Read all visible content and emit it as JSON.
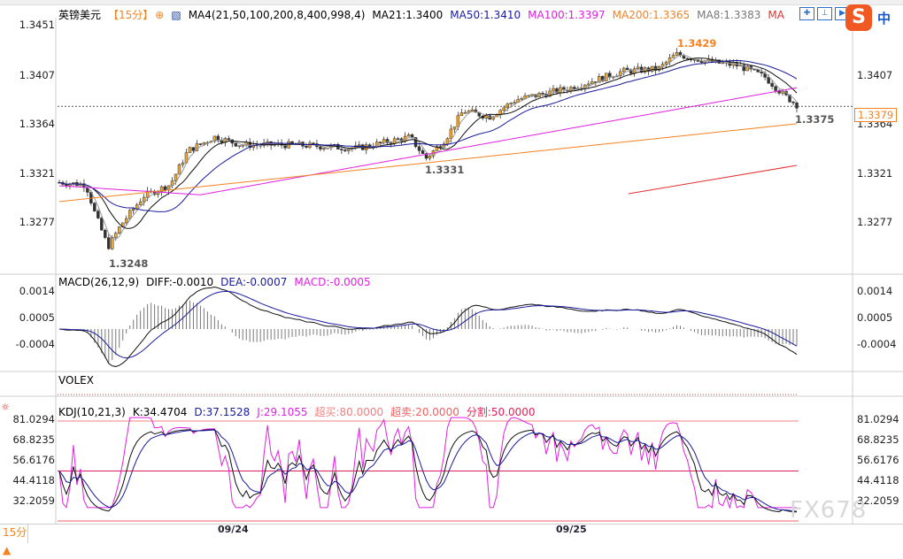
{
  "header": {
    "symbol": "英镑美元",
    "timeframe": "【15分】",
    "indicator": "MA4(21,50,100,200,8,400,998,4)",
    "ma21": "MA21:1.3400",
    "ma50": "MA50:1.3410",
    "ma100": "MA100:1.3397",
    "ma200": "MA200:1.3365",
    "ma8": "MA8:1.3383",
    "ma_more": "MA"
  },
  "toolbar": {
    "icons": [
      "crosshair-icon",
      "range-icon",
      "play-icon"
    ],
    "ime": "中",
    "ime_logo": "S"
  },
  "price_axis": {
    "left": [
      "1.3451",
      "1.3407",
      "1.3364",
      "1.3321",
      "1.3277"
    ],
    "right": [
      "1.3407",
      "1.3364",
      "1.3321",
      "1.3277"
    ],
    "current": "1.3379"
  },
  "annotations": {
    "high": "1.3429",
    "low": "1.3248",
    "mid_low": "1.3331",
    "last_low": "1.3375"
  },
  "macd": {
    "title": "MACD(26,12,9)",
    "diff": "DIFF:-0.0010",
    "dea": "DEA:-0.0007",
    "macd": "MACD:-0.0005",
    "axis": [
      "0.0014",
      "0.0005",
      "-0.0004"
    ]
  },
  "volex": {
    "title": "VOLEX"
  },
  "kdj": {
    "title": "KDJ(10,21,3)",
    "k": "K:34.4704",
    "d": "D:37.1528",
    "j": "J:29.1055",
    "overbought": "超买:80.0000",
    "oversold": "超卖:20.0000",
    "split": "分割:50.0000",
    "axis": [
      "81.0294",
      "68.8235",
      "56.6176",
      "44.4118",
      "32.2059"
    ]
  },
  "footer": {
    "timeframe": "15分▲",
    "dates": [
      "09/24",
      "09/25"
    ]
  },
  "watermark": "FX678",
  "chart_data": {
    "type": "candlestick",
    "symbol": "GBP/USD",
    "price_path": [
      [
        0,
        1.3312
      ],
      [
        30,
        1.331
      ],
      [
        40,
        1.3285
      ],
      [
        55,
        1.3255
      ],
      [
        70,
        1.3275
      ],
      [
        95,
        1.33
      ],
      [
        125,
        1.331
      ],
      [
        145,
        1.334
      ],
      [
        175,
        1.3352
      ],
      [
        205,
        1.3345
      ],
      [
        265,
        1.3345
      ],
      [
        335,
        1.3342
      ],
      [
        395,
        1.3352
      ],
      [
        413,
        1.3333
      ],
      [
        435,
        1.335
      ],
      [
        455,
        1.3375
      ],
      [
        485,
        1.337
      ],
      [
        515,
        1.3385
      ],
      [
        545,
        1.339
      ],
      [
        575,
        1.3395
      ],
      [
        635,
        1.341
      ],
      [
        675,
        1.3412
      ],
      [
        695,
        1.3425
      ],
      [
        735,
        1.3418
      ],
      [
        765,
        1.3415
      ],
      [
        795,
        1.3405
      ],
      [
        815,
        1.339
      ],
      [
        835,
        1.3378
      ]
    ],
    "ylim": [
      1.3235,
      1.3455
    ]
  }
}
